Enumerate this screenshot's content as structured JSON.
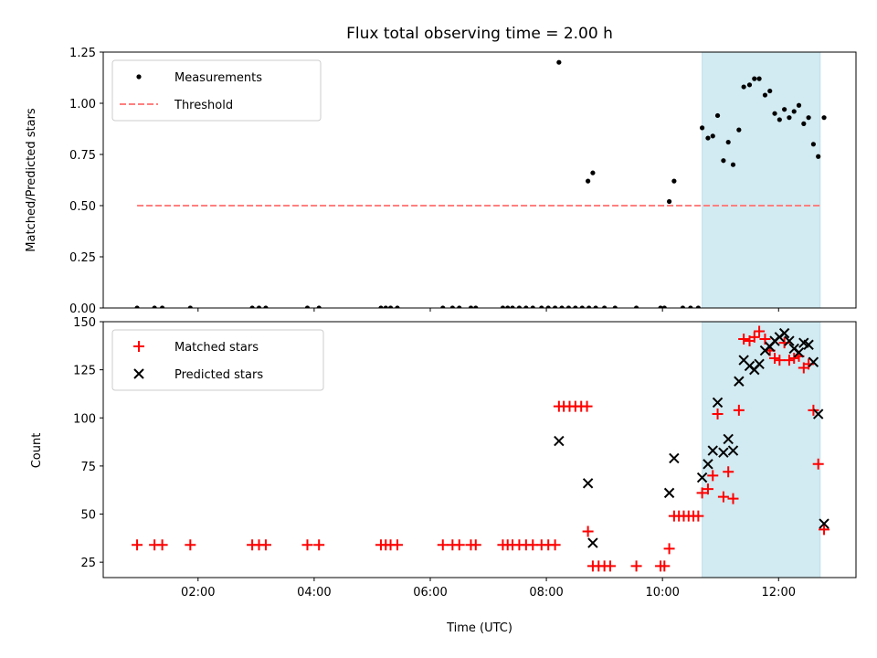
{
  "chart_data": [
    {
      "type": "scatter",
      "title": "Flux total observing time = 2.00 h",
      "xlabel": "",
      "ylabel": "Matched/Predicted stars",
      "xlim": [
        "00:22",
        "13:20"
      ],
      "ylim": [
        0,
        1.25
      ],
      "yticks": [
        "0.00",
        "0.25",
        "0.50",
        "0.75",
        "1.00",
        "1.25"
      ],
      "xticks": [
        "02:00",
        "04:00",
        "06:00",
        "08:00",
        "10:00",
        "12:00"
      ],
      "tick_labels_shown": false,
      "legend": {
        "placement": "top-left",
        "entries": [
          "Measurements",
          "Threshold"
        ]
      },
      "threshold": {
        "name": "Threshold",
        "y": 0.5,
        "x": [
          "00:57",
          "12:43"
        ],
        "color": "#ff7f7f"
      },
      "shaded_region": {
        "x": [
          "10:41",
          "12:43"
        ],
        "color": "#add8e6"
      },
      "series": [
        {
          "name": "Measurements",
          "color": "#000000",
          "marker": "dot",
          "points": [
            [
              "00:57",
              0
            ],
            [
              "01:15",
              0
            ],
            [
              "01:23",
              0
            ],
            [
              "01:52",
              0
            ],
            [
              "02:56",
              0
            ],
            [
              "03:03",
              0
            ],
            [
              "03:10",
              0
            ],
            [
              "03:53",
              0
            ],
            [
              "04:05",
              0
            ],
            [
              "05:09",
              0
            ],
            [
              "05:14",
              0
            ],
            [
              "05:19",
              0
            ],
            [
              "05:26",
              0
            ],
            [
              "06:13",
              0
            ],
            [
              "06:23",
              0
            ],
            [
              "06:30",
              0
            ],
            [
              "06:42",
              0
            ],
            [
              "06:47",
              0
            ],
            [
              "07:15",
              0
            ],
            [
              "07:20",
              0
            ],
            [
              "07:25",
              0
            ],
            [
              "07:32",
              0
            ],
            [
              "07:39",
              0
            ],
            [
              "07:46",
              0
            ],
            [
              "07:55",
              0
            ],
            [
              "08:02",
              0
            ],
            [
              "08:09",
              0
            ],
            [
              "08:16",
              0
            ],
            [
              "08:23",
              0
            ],
            [
              "08:30",
              0
            ],
            [
              "08:37",
              0
            ],
            [
              "08:44",
              0
            ],
            [
              "08:51",
              0
            ],
            [
              "09:00",
              0
            ],
            [
              "09:11",
              0
            ],
            [
              "09:33",
              0
            ],
            [
              "09:58",
              0
            ],
            [
              "10:02",
              0
            ],
            [
              "10:21",
              0
            ],
            [
              "10:29",
              0
            ],
            [
              "10:37",
              0
            ],
            [
              "08:13",
              1.2
            ],
            [
              "08:43",
              0.62
            ],
            [
              "08:48",
              0.66
            ],
            [
              "10:07",
              0.52
            ],
            [
              "10:12",
              0.62
            ],
            [
              "10:41",
              0.88
            ],
            [
              "10:47",
              0.83
            ],
            [
              "10:52",
              0.84
            ],
            [
              "10:57",
              0.94
            ],
            [
              "11:03",
              0.72
            ],
            [
              "11:08",
              0.81
            ],
            [
              "11:13",
              0.7
            ],
            [
              "11:19",
              0.87
            ],
            [
              "11:24",
              1.08
            ],
            [
              "11:30",
              1.09
            ],
            [
              "11:35",
              1.12
            ],
            [
              "11:40",
              1.12
            ],
            [
              "11:46",
              1.04
            ],
            [
              "11:51",
              1.06
            ],
            [
              "11:56",
              0.95
            ],
            [
              "12:01",
              0.92
            ],
            [
              "12:06",
              0.97
            ],
            [
              "12:11",
              0.93
            ],
            [
              "12:16",
              0.96
            ],
            [
              "12:21",
              0.99
            ],
            [
              "12:26",
              0.9
            ],
            [
              "12:31",
              0.93
            ],
            [
              "12:36",
              0.8
            ],
            [
              "12:41",
              0.74
            ],
            [
              "12:47",
              0.93
            ]
          ]
        }
      ]
    },
    {
      "type": "scatter",
      "title": "",
      "xlabel": "Time (UTC)",
      "ylabel": "Count",
      "xlim": [
        "00:22",
        "13:20"
      ],
      "ylim": [
        17,
        150
      ],
      "yticks": [
        "25",
        "50",
        "75",
        "100",
        "125",
        "150"
      ],
      "xticks": [
        "02:00",
        "04:00",
        "06:00",
        "08:00",
        "10:00",
        "12:00"
      ],
      "legend": {
        "placement": "top-left",
        "entries": [
          "Matched stars",
          "Predicted stars"
        ]
      },
      "shaded_region": {
        "x": [
          "10:41",
          "12:43"
        ],
        "color": "#add8e6"
      },
      "series": [
        {
          "name": "Matched stars",
          "color": "#ff0000",
          "marker": "plus",
          "points": [
            [
              "00:57",
              34
            ],
            [
              "01:15",
              34
            ],
            [
              "01:23",
              34
            ],
            [
              "01:52",
              34
            ],
            [
              "02:56",
              34
            ],
            [
              "03:03",
              34
            ],
            [
              "03:10",
              34
            ],
            [
              "03:53",
              34
            ],
            [
              "04:05",
              34
            ],
            [
              "05:09",
              34
            ],
            [
              "05:14",
              34
            ],
            [
              "05:19",
              34
            ],
            [
              "05:26",
              34
            ],
            [
              "06:13",
              34
            ],
            [
              "06:23",
              34
            ],
            [
              "06:30",
              34
            ],
            [
              "06:42",
              34
            ],
            [
              "06:47",
              34
            ],
            [
              "07:15",
              34
            ],
            [
              "07:20",
              34
            ],
            [
              "07:25",
              34
            ],
            [
              "07:32",
              34
            ],
            [
              "07:39",
              34
            ],
            [
              "07:46",
              34
            ],
            [
              "07:55",
              34
            ],
            [
              "08:02",
              34
            ],
            [
              "08:09",
              34
            ],
            [
              "08:13",
              106
            ],
            [
              "08:18",
              106
            ],
            [
              "08:24",
              106
            ],
            [
              "08:30",
              106
            ],
            [
              "08:36",
              106
            ],
            [
              "08:42",
              106
            ],
            [
              "08:43",
              41
            ],
            [
              "08:48",
              23
            ],
            [
              "08:54",
              23
            ],
            [
              "09:00",
              23
            ],
            [
              "09:06",
              23
            ],
            [
              "09:33",
              23
            ],
            [
              "09:58",
              23
            ],
            [
              "10:02",
              23
            ],
            [
              "10:07",
              32
            ],
            [
              "10:12",
              49
            ],
            [
              "10:17",
              49
            ],
            [
              "10:22",
              49
            ],
            [
              "10:27",
              49
            ],
            [
              "10:32",
              49
            ],
            [
              "10:37",
              49
            ],
            [
              "10:41",
              61
            ],
            [
              "10:47",
              63
            ],
            [
              "10:52",
              70
            ],
            [
              "10:57",
              102
            ],
            [
              "11:03",
              59
            ],
            [
              "11:08",
              72
            ],
            [
              "11:13",
              58
            ],
            [
              "11:19",
              104
            ],
            [
              "11:24",
              141
            ],
            [
              "11:30",
              140
            ],
            [
              "11:35",
              142
            ],
            [
              "11:40",
              145
            ],
            [
              "11:46",
              141
            ],
            [
              "11:51",
              135
            ],
            [
              "11:56",
              131
            ],
            [
              "12:01",
              130
            ],
            [
              "12:06",
              139
            ],
            [
              "12:11",
              130
            ],
            [
              "12:16",
              131
            ],
            [
              "12:21",
              132
            ],
            [
              "12:26",
              126
            ],
            [
              "12:31",
              128
            ],
            [
              "12:36",
              104
            ],
            [
              "12:41",
              76
            ],
            [
              "12:47",
              42
            ]
          ]
        },
        {
          "name": "Predicted stars",
          "color": "#000000",
          "marker": "x",
          "points": [
            [
              "08:13",
              88
            ],
            [
              "08:43",
              66
            ],
            [
              "08:48",
              35
            ],
            [
              "10:07",
              61
            ],
            [
              "10:12",
              79
            ],
            [
              "10:41",
              69
            ],
            [
              "10:47",
              76
            ],
            [
              "10:52",
              83
            ],
            [
              "10:57",
              108
            ],
            [
              "11:03",
              82
            ],
            [
              "11:08",
              89
            ],
            [
              "11:13",
              83
            ],
            [
              "11:19",
              119
            ],
            [
              "11:24",
              130
            ],
            [
              "11:30",
              127
            ],
            [
              "11:35",
              125
            ],
            [
              "11:40",
              128
            ],
            [
              "11:46",
              135
            ],
            [
              "11:51",
              137
            ],
            [
              "11:56",
              140
            ],
            [
              "12:01",
              142
            ],
            [
              "12:06",
              144
            ],
            [
              "12:11",
              140
            ],
            [
              "12:16",
              136
            ],
            [
              "12:21",
              134
            ],
            [
              "12:26",
              139
            ],
            [
              "12:31",
              138
            ],
            [
              "12:36",
              129
            ],
            [
              "12:41",
              102
            ],
            [
              "12:47",
              45
            ]
          ]
        }
      ]
    }
  ]
}
